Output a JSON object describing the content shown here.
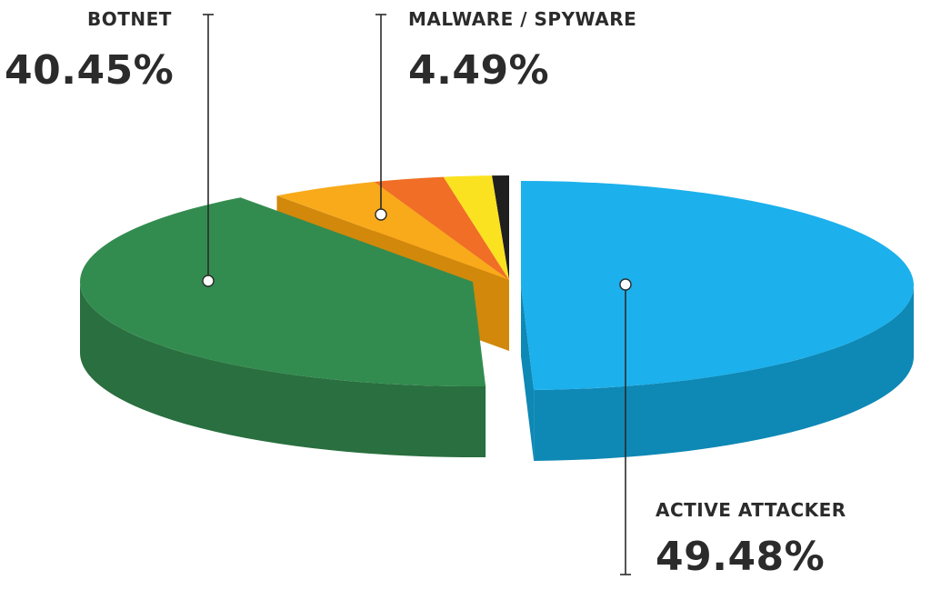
{
  "chart_data": {
    "type": "pie",
    "style": "3d-exploded",
    "title": "",
    "slices": [
      {
        "label": "ACTIVE ATTACKER",
        "value": 49.48,
        "value_label": "49.48%",
        "color": "#1cb0ec",
        "side_color": "#0e88b5"
      },
      {
        "label": "BOTNET",
        "value": 40.45,
        "value_label": "40.45%",
        "color": "#338c4f",
        "side_color": "#296f3f"
      },
      {
        "label": "MALWARE / SPYWARE",
        "value": 4.49,
        "value_label": "4.49%",
        "color": "#f8aa1b",
        "side_color": "#d1880b"
      },
      {
        "label": "",
        "value": 2.9,
        "value_label": "",
        "color": "#f06e25",
        "side_color": "#c85718"
      },
      {
        "label": "",
        "value": 1.98,
        "value_label": "",
        "color": "#fbe220",
        "side_color": "#cfb60d"
      },
      {
        "label": "",
        "value": 0.7,
        "value_label": "",
        "color": "#1f1f1f",
        "side_color": "#111111"
      }
    ],
    "label_color": "#2b2b2b",
    "leader_color": "#2b2b2b",
    "legend": "none",
    "grid": false
  }
}
